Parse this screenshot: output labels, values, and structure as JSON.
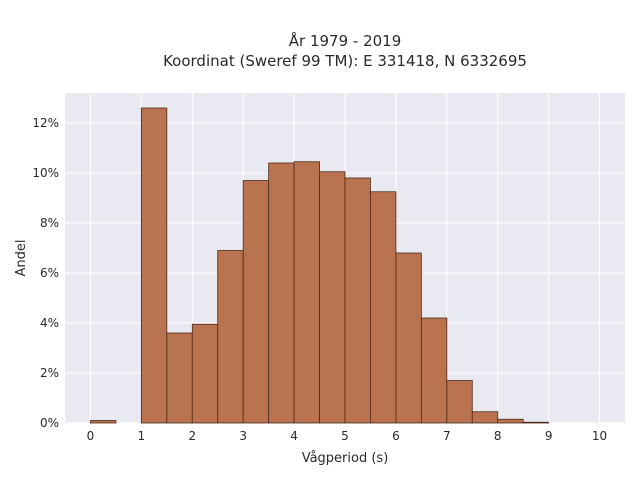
{
  "chart_data": {
    "type": "bar",
    "title": "År 1979 - 2019",
    "subtitle": "Koordinat (Sweref 99 TM): E 331418, N 6332695",
    "xlabel": "Vågperiod (s)",
    "ylabel": "Andel",
    "xlim": [
      -0.5,
      10.5
    ],
    "ylim": [
      0,
      13.2
    ],
    "x_ticks": [
      0,
      1,
      2,
      3,
      4,
      5,
      6,
      7,
      8,
      9,
      10
    ],
    "y_ticks": [
      0,
      2,
      4,
      6,
      8,
      10,
      12
    ],
    "y_tick_suffix": "%",
    "bin_width": 0.5,
    "bins": [
      {
        "start": 0.0,
        "value": 0.1
      },
      {
        "start": 0.5,
        "value": 0.0
      },
      {
        "start": 1.0,
        "value": 12.6
      },
      {
        "start": 1.5,
        "value": 3.6
      },
      {
        "start": 2.0,
        "value": 3.95
      },
      {
        "start": 2.5,
        "value": 6.9
      },
      {
        "start": 3.0,
        "value": 9.7
      },
      {
        "start": 3.5,
        "value": 10.4
      },
      {
        "start": 4.0,
        "value": 10.45
      },
      {
        "start": 4.5,
        "value": 10.05
      },
      {
        "start": 5.0,
        "value": 9.8
      },
      {
        "start": 5.5,
        "value": 9.25
      },
      {
        "start": 6.0,
        "value": 6.8
      },
      {
        "start": 6.5,
        "value": 4.2
      },
      {
        "start": 7.0,
        "value": 1.7
      },
      {
        "start": 7.5,
        "value": 0.45
      },
      {
        "start": 8.0,
        "value": 0.15
      },
      {
        "start": 8.5,
        "value": 0.03
      }
    ],
    "grid": true,
    "colors": {
      "bar_fill": "#b9734e",
      "bar_stroke": "#4a2a1a",
      "plot_bg": "#e9e9f1",
      "grid": "#ffffff"
    }
  }
}
